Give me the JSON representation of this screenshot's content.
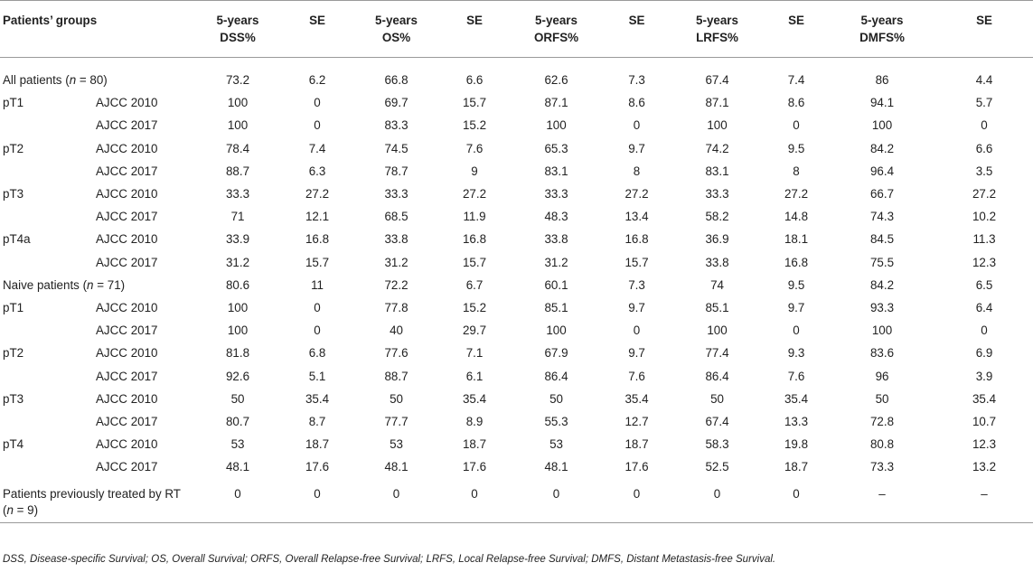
{
  "header": {
    "groups": "Patients’ groups",
    "columns": [
      {
        "line1": "5-years",
        "line2": "DSS%"
      },
      {
        "line1": "SE",
        "line2": ""
      },
      {
        "line1": "5-years",
        "line2": "OS%"
      },
      {
        "line1": "SE",
        "line2": ""
      },
      {
        "line1": "5-years",
        "line2": "ORFS%"
      },
      {
        "line1": "SE",
        "line2": ""
      },
      {
        "line1": "5-years",
        "line2": "LRFS%"
      },
      {
        "line1": "SE",
        "line2": ""
      },
      {
        "line1": "5-years",
        "line2": "DMFS%"
      },
      {
        "line1": "SE",
        "line2": ""
      }
    ]
  },
  "rows": [
    {
      "label": "All patients (",
      "n": "n",
      "label_tail": " = 80)",
      "values": [
        "73.2",
        "6.2",
        "66.8",
        "6.6",
        "62.6",
        "7.3",
        "67.4",
        "7.4",
        "86",
        "4.4"
      ]
    },
    {
      "group": "pT1",
      "edition": "AJCC 2010",
      "values": [
        "100",
        "0",
        "69.7",
        "15.7",
        "87.1",
        "8.6",
        "87.1",
        "8.6",
        "94.1",
        "5.7"
      ]
    },
    {
      "group": "",
      "edition": "AJCC 2017",
      "values": [
        "100",
        "0",
        "83.3",
        "15.2",
        "100",
        "0",
        "100",
        "0",
        "100",
        "0"
      ]
    },
    {
      "group": "pT2",
      "edition": "AJCC 2010",
      "values": [
        "78.4",
        "7.4",
        "74.5",
        "7.6",
        "65.3",
        "9.7",
        "74.2",
        "9.5",
        "84.2",
        "6.6"
      ]
    },
    {
      "group": "",
      "edition": "AJCC 2017",
      "values": [
        "88.7",
        "6.3",
        "78.7",
        "9",
        "83.1",
        "8",
        "83.1",
        "8",
        "96.4",
        "3.5"
      ]
    },
    {
      "group": "pT3",
      "edition": "AJCC 2010",
      "values": [
        "33.3",
        "27.2",
        "33.3",
        "27.2",
        "33.3",
        "27.2",
        "33.3",
        "27.2",
        "66.7",
        "27.2"
      ]
    },
    {
      "group": "",
      "edition": "AJCC 2017",
      "values": [
        "71",
        "12.1",
        "68.5",
        "11.9",
        "48.3",
        "13.4",
        "58.2",
        "14.8",
        "74.3",
        "10.2"
      ]
    },
    {
      "group": "pT4a",
      "edition": "AJCC 2010",
      "values": [
        "33.9",
        "16.8",
        "33.8",
        "16.8",
        "33.8",
        "16.8",
        "36.9",
        "18.1",
        "84.5",
        "11.3"
      ]
    },
    {
      "group": "",
      "edition": "AJCC 2017",
      "values": [
        "31.2",
        "15.7",
        "31.2",
        "15.7",
        "31.2",
        "15.7",
        "33.8",
        "16.8",
        "75.5",
        "12.3"
      ]
    },
    {
      "label": "Naive patients (",
      "n": "n",
      "label_tail": " = 71)",
      "values": [
        "80.6",
        "11",
        "72.2",
        "6.7",
        "60.1",
        "7.3",
        "74",
        "9.5",
        "84.2",
        "6.5"
      ]
    },
    {
      "group": "pT1",
      "edition": "AJCC 2010",
      "values": [
        "100",
        "0",
        "77.8",
        "15.2",
        "85.1",
        "9.7",
        "85.1",
        "9.7",
        "93.3",
        "6.4"
      ]
    },
    {
      "group": "",
      "edition": "AJCC 2017",
      "values": [
        "100",
        "0",
        "40",
        "29.7",
        "100",
        "0",
        "100",
        "0",
        "100",
        "0"
      ]
    },
    {
      "group": "pT2",
      "edition": "AJCC 2010",
      "values": [
        "81.8",
        "6.8",
        "77.6",
        "7.1",
        "67.9",
        "9.7",
        "77.4",
        "9.3",
        "83.6",
        "6.9"
      ]
    },
    {
      "group": "",
      "edition": "AJCC 2017",
      "values": [
        "92.6",
        "5.1",
        "88.7",
        "6.1",
        "86.4",
        "7.6",
        "86.4",
        "7.6",
        "96",
        "3.9"
      ]
    },
    {
      "group": "pT3",
      "edition": "AJCC 2010",
      "values": [
        "50",
        "35.4",
        "50",
        "35.4",
        "50",
        "35.4",
        "50",
        "35.4",
        "50",
        "35.4"
      ]
    },
    {
      "group": "",
      "edition": "AJCC 2017",
      "values": [
        "80.7",
        "8.7",
        "77.7",
        "8.9",
        "55.3",
        "12.7",
        "67.4",
        "13.3",
        "72.8",
        "10.7"
      ]
    },
    {
      "group": "pT4",
      "edition": "AJCC 2010",
      "values": [
        "53",
        "18.7",
        "53",
        "18.7",
        "53",
        "18.7",
        "58.3",
        "19.8",
        "80.8",
        "12.3"
      ]
    },
    {
      "group": "",
      "edition": "AJCC 2017",
      "values": [
        "48.1",
        "17.6",
        "48.1",
        "17.6",
        "48.1",
        "17.6",
        "52.5",
        "18.7",
        "73.3",
        "13.2"
      ]
    },
    {
      "label": "Patients previously treated by RT (",
      "n": "n",
      "label_tail": " = 9)",
      "two_line": true,
      "values": [
        "0",
        "0",
        "0",
        "0",
        "0",
        "0",
        "0",
        "0",
        "–",
        "–"
      ]
    }
  ],
  "footnote": "DSS, Disease-specific Survival; OS, Overall Survival; ORFS, Overall Relapse-free Survival; LRFS, Local Relapse-free Survival; DMFS, Distant Metastasis-free Survival."
}
